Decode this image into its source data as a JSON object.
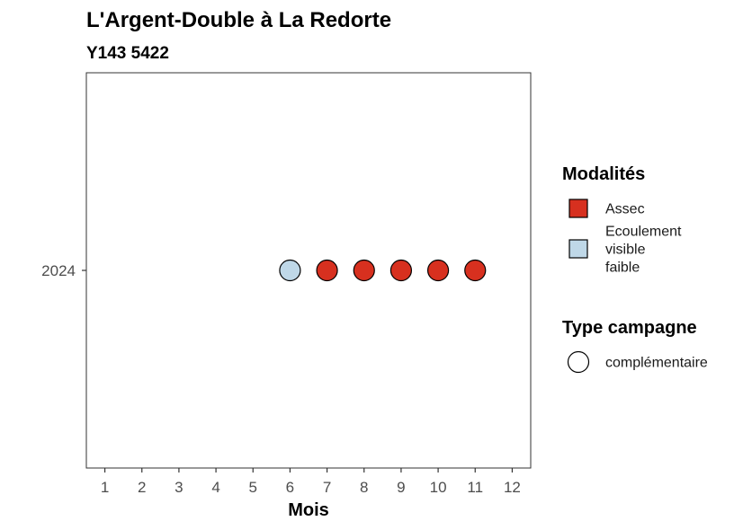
{
  "chart_data": {
    "type": "scatter",
    "title": "L'Argent-Double à La Redorte",
    "subtitle": "Y143 5422",
    "xlabel": "Mois",
    "ylabel": "",
    "x_ticks": [
      "1",
      "2",
      "3",
      "4",
      "5",
      "6",
      "7",
      "8",
      "9",
      "10",
      "11",
      "12"
    ],
    "y_ticks": [
      "2024"
    ],
    "xlim": [
      0.5,
      12.5
    ],
    "grid": false,
    "legend_position": "right",
    "points": [
      {
        "x": 6,
        "y": "2024",
        "modalite": "Ecoulement visible faible",
        "campagne": "complémentaire"
      },
      {
        "x": 7,
        "y": "2024",
        "modalite": "Assec",
        "campagne": "complémentaire"
      },
      {
        "x": 8,
        "y": "2024",
        "modalite": "Assec",
        "campagne": "complémentaire"
      },
      {
        "x": 9,
        "y": "2024",
        "modalite": "Assec",
        "campagne": "complémentaire"
      },
      {
        "x": 10,
        "y": "2024",
        "modalite": "Assec",
        "campagne": "complémentaire"
      },
      {
        "x": 11,
        "y": "2024",
        "modalite": "Assec",
        "campagne": "complémentaire"
      }
    ],
    "legend_modalites": {
      "title": "Modalités",
      "items": [
        {
          "label_lines": [
            "Assec"
          ],
          "color": "#d7301f"
        },
        {
          "label_lines": [
            "Ecoulement",
            "visible",
            "faible"
          ],
          "color": "#bfd8e8"
        }
      ]
    },
    "legend_campagne": {
      "title": "Type campagne",
      "items": [
        {
          "label": "complémentaire"
        }
      ]
    }
  }
}
